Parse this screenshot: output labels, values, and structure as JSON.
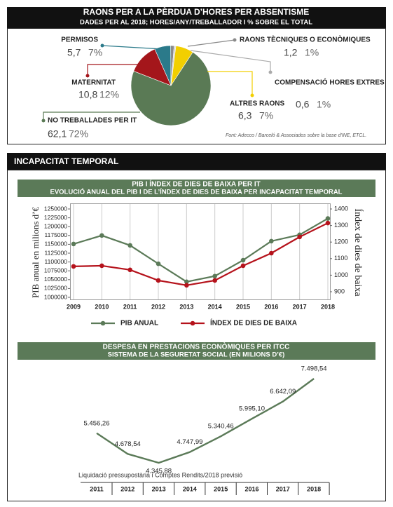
{
  "section_title": "INCAPACITAT TEMPORAL",
  "chart_data": [
    {
      "type": "pie",
      "title": "RAONS PER A LA PÈRDUA D’HORES PER ABSENTISME",
      "subtitle": "DADES PER AL 2018; HORES/ANY/TREBALLADOR I % SOBRE EL TOTAL",
      "categories": [
        "PERMISOS",
        "RAONS TÈCNIQUES O ECONÒMIQUES",
        "COMPENSACIÓ HORES EXTRES",
        "ALTRES RAONS",
        "NO TREBALLADES PER IT",
        "MATERNITAT"
      ],
      "values": [
        5.7,
        1.2,
        0.6,
        6.3,
        62.1,
        10.8
      ],
      "value_labels": [
        "5,7",
        "1,2",
        "0,6",
        "6,3",
        "62,1",
        "10,8"
      ],
      "shares": [
        7,
        1,
        1,
        7,
        72,
        12
      ],
      "share_labels": [
        "7%",
        "1%",
        "1%",
        "7%",
        "72%",
        "12%"
      ],
      "colors": [
        "#2b7a8a",
        "#8a8a8a",
        "#cfcfcf",
        "#f2cf00",
        "#5a7a55",
        "#a4161b"
      ],
      "source": "Font: Adecco / Barceló & Associados sobre la base d'INE, ETCL."
    },
    {
      "type": "line",
      "title": "PIB I ÍNDEX DE DIES DE BAIXA PER IT",
      "subtitle": "EVOLUCIÓ ANUAL DEL PIB I DE L’ÍNDEX DE DIES DE BAIXA PER INCAPACITAT TEMPORAL",
      "categories": [
        "2009",
        "2010",
        "2011",
        "2012",
        "2013",
        "2014",
        "2015",
        "2016",
        "2017",
        "2018"
      ],
      "ylabel": "PIB anual en milions d’€",
      "y2label": "Índex de dies de baixa",
      "ylim": [
        1000000,
        1250000
      ],
      "yticks": [
        1000000,
        1025000,
        1050000,
        1075000,
        1100000,
        1125000,
        1150000,
        1175000,
        1200000,
        1225000,
        1250000
      ],
      "y2lim": [
        900,
        1400
      ],
      "y2ticks": [
        900,
        1000,
        1100,
        1200,
        1300,
        1400
      ],
      "series": [
        {
          "name": "PIB ANUAL",
          "color": "#5b7a58",
          "values": [
            1151000,
            1175000,
            1147000,
            1095000,
            1044000,
            1060000,
            1105000,
            1159000,
            1177000,
            1223000
          ]
        },
        {
          "name": "ÍNDEX DE DIES DE BAIXA",
          "color": "#b5121b",
          "axis": "y2",
          "values": [
            1053,
            1057,
            1032,
            968,
            939,
            968,
            1057,
            1133,
            1231,
            1315
          ]
        }
      ]
    },
    {
      "type": "line",
      "title": "DESPESA EN PRESTACIONS ECONÒMIQUES PER ITCC",
      "subtitle": "SISTEMA DE LA SEGURETAT SOCIAL (EN MILIONS D’€)",
      "categories": [
        "2011",
        "2012",
        "2013",
        "2014",
        "2015",
        "2016",
        "2017",
        "2018"
      ],
      "values": [
        5456.26,
        4678.54,
        4345.88,
        4747.99,
        5340.46,
        5995.1,
        6642.09,
        7498.54
      ],
      "value_labels": [
        "5.456,26",
        "4.678,54",
        "4.345,88",
        "4.747,99",
        "5.340,46",
        "5.995,10",
        "6.642,09",
        "7.498,54"
      ],
      "color": "#5b7a58",
      "note": "Liquidació pressupostària i Comptes Rendits/2018 previsió"
    }
  ]
}
